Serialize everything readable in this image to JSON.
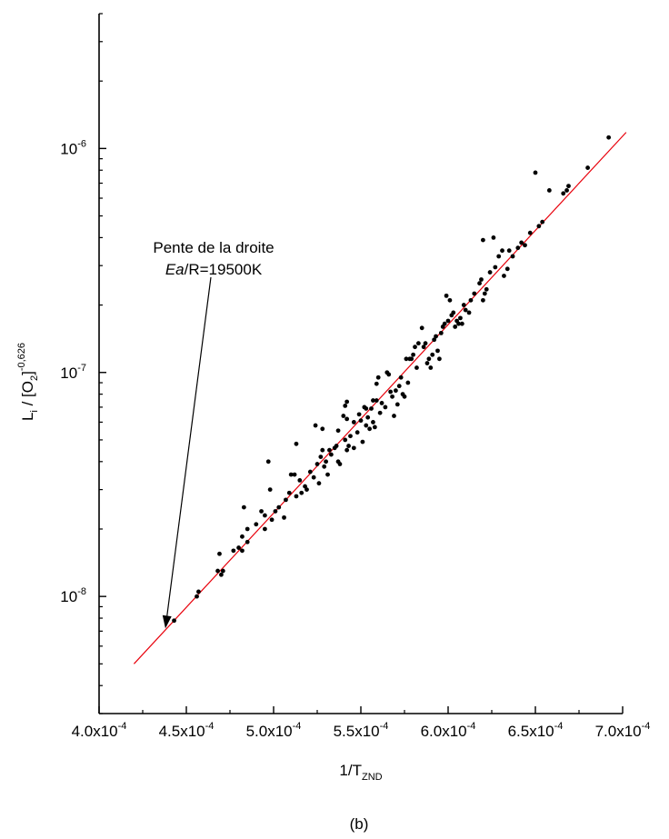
{
  "chart_data": {
    "type": "scatter",
    "caption": "(b)",
    "xlabel": {
      "main": "1/T",
      "sub": "ZND"
    },
    "ylabel": {
      "p1": "L",
      "s1": "i",
      "p2": " / [O",
      "s2": "2",
      "p3": "]",
      "sup": "-0,626"
    },
    "x_scale": "linear",
    "y_scale": "log",
    "xlim": [
      0.0004,
      0.0007
    ],
    "ylim": [
      3e-09,
      4e-06
    ],
    "x_ticks": [
      {
        "value": 0.0004,
        "mant": "4.0x10",
        "exp": "-4"
      },
      {
        "value": 0.00045,
        "mant": "4.5x10",
        "exp": "-4"
      },
      {
        "value": 0.0005,
        "mant": "5.0x10",
        "exp": "-4"
      },
      {
        "value": 0.00055,
        "mant": "5.5x10",
        "exp": "-4"
      },
      {
        "value": 0.0006,
        "mant": "6.0x10",
        "exp": "-4"
      },
      {
        "value": 0.00065,
        "mant": "6.5x10",
        "exp": "-4"
      },
      {
        "value": 0.0007,
        "mant": "7.0x10",
        "exp": "-4"
      }
    ],
    "y_ticks": [
      {
        "value": 1e-08,
        "base": "10",
        "exp": "-8"
      },
      {
        "value": 1e-07,
        "base": "10",
        "exp": "-7"
      },
      {
        "value": 1e-06,
        "base": "10",
        "exp": "-6"
      }
    ],
    "grid": false,
    "fit_line": {
      "color": "#e8000b",
      "x": [
        0.00042,
        0.000702
      ],
      "y": [
        5e-09,
        1.18e-06
      ]
    },
    "annotation": {
      "line1": "Pente de la droite",
      "line2_italic": "Ea",
      "line2_rest": "/R=19500K",
      "arrow_target": {
        "x": 0.000438,
        "y": 7.2e-09
      }
    },
    "series": [
      {
        "marker_color": "#000000",
        "points": [
          [
            0.000443,
            7.8e-09
          ],
          [
            0.000456,
            1e-08
          ],
          [
            0.000457,
            1.05e-08
          ],
          [
            0.000468,
            1.3e-08
          ],
          [
            0.000469,
            1.55e-08
          ],
          [
            0.00047,
            1.25e-08
          ],
          [
            0.000471,
            1.3e-08
          ],
          [
            0.000477,
            1.6e-08
          ],
          [
            0.00048,
            1.65e-08
          ],
          [
            0.000482,
            1.85e-08
          ],
          [
            0.000482,
            1.6e-08
          ],
          [
            0.000483,
            2.5e-08
          ],
          [
            0.000485,
            2e-08
          ],
          [
            0.000485,
            1.75e-08
          ],
          [
            0.00049,
            2.1e-08
          ],
          [
            0.000493,
            2.4e-08
          ],
          [
            0.000495,
            2.3e-08
          ],
          [
            0.000495,
            2e-08
          ],
          [
            0.000497,
            4e-08
          ],
          [
            0.000498,
            3e-08
          ],
          [
            0.000499,
            2.2e-08
          ],
          [
            0.000501,
            2.4e-08
          ],
          [
            0.000503,
            2.5e-08
          ],
          [
            0.000506,
            2.25e-08
          ],
          [
            0.000507,
            2.7e-08
          ],
          [
            0.000509,
            2.9e-08
          ],
          [
            0.00051,
            3.5e-08
          ],
          [
            0.000512,
            3.5e-08
          ],
          [
            0.000513,
            4.8e-08
          ],
          [
            0.000513,
            2.8e-08
          ],
          [
            0.000515,
            3.3e-08
          ],
          [
            0.000516,
            2.9e-08
          ],
          [
            0.000518,
            3.1e-08
          ],
          [
            0.000519,
            3e-08
          ],
          [
            0.000521,
            3.6e-08
          ],
          [
            0.000523,
            3.4e-08
          ],
          [
            0.000524,
            5.8e-08
          ],
          [
            0.000525,
            3.9e-08
          ],
          [
            0.000526,
            3.2e-08
          ],
          [
            0.000527,
            4.2e-08
          ],
          [
            0.000528,
            5.6e-08
          ],
          [
            0.000528,
            4.5e-08
          ],
          [
            0.000529,
            3.8e-08
          ],
          [
            0.00053,
            4e-08
          ],
          [
            0.000531,
            3.5e-08
          ],
          [
            0.000532,
            4.5e-08
          ],
          [
            0.000533,
            4.3e-08
          ],
          [
            0.000535,
            4.6e-08
          ],
          [
            0.000536,
            4.7e-08
          ],
          [
            0.000537,
            4e-08
          ],
          [
            0.000537,
            5.5e-08
          ],
          [
            0.000538,
            3.9e-08
          ],
          [
            0.00054,
            6.4e-08
          ],
          [
            0.000541,
            7.1e-08
          ],
          [
            0.000541,
            5e-08
          ],
          [
            0.000542,
            7.4e-08
          ],
          [
            0.000542,
            6.2e-08
          ],
          [
            0.000542,
            4.5e-08
          ],
          [
            0.000543,
            4.7e-08
          ],
          [
            0.000544,
            5.2e-08
          ],
          [
            0.000546,
            6e-08
          ],
          [
            0.000546,
            4.6e-08
          ],
          [
            0.000548,
            5.4e-08
          ],
          [
            0.000549,
            6.5e-08
          ],
          [
            0.00055,
            6.1e-08
          ],
          [
            0.000551,
            4.9e-08
          ],
          [
            0.000552,
            7e-08
          ],
          [
            0.000553,
            5.8e-08
          ],
          [
            0.000553,
            6.9e-08
          ],
          [
            0.000554,
            6.3e-08
          ],
          [
            0.000555,
            5.6e-08
          ],
          [
            0.000556,
            6.9e-08
          ],
          [
            0.000557,
            7.5e-08
          ],
          [
            0.000557,
            6e-08
          ],
          [
            0.000558,
            5.7e-08
          ],
          [
            0.000559,
            8.9e-08
          ],
          [
            0.000559,
            7.5e-08
          ],
          [
            0.00056,
            9.5e-08
          ],
          [
            0.000561,
            6.6e-08
          ],
          [
            0.000562,
            7.3e-08
          ],
          [
            0.000564,
            7e-08
          ],
          [
            0.000565,
            1e-07
          ],
          [
            0.000566,
            9.8e-08
          ],
          [
            0.000567,
            8.2e-08
          ],
          [
            0.000568,
            7.8e-08
          ],
          [
            0.000569,
            6.4e-08
          ],
          [
            0.00057,
            8.3e-08
          ],
          [
            0.000571,
            7.2e-08
          ],
          [
            0.000572,
            8.7e-08
          ],
          [
            0.000573,
            9.5e-08
          ],
          [
            0.000574,
            8e-08
          ],
          [
            0.000575,
            7.8e-08
          ],
          [
            0.000576,
            1.15e-07
          ],
          [
            0.000577,
            9e-08
          ],
          [
            0.000578,
            1.15e-07
          ],
          [
            0.000579,
            1.15e-07
          ],
          [
            0.00058,
            1.2e-07
          ],
          [
            0.000581,
            1.3e-07
          ],
          [
            0.000582,
            1.05e-07
          ],
          [
            0.000583,
            1.35e-07
          ],
          [
            0.000585,
            1.58e-07
          ],
          [
            0.000586,
            1.3e-07
          ],
          [
            0.000587,
            1.35e-07
          ],
          [
            0.000588,
            1.1e-07
          ],
          [
            0.000589,
            1.15e-07
          ],
          [
            0.00059,
            1.05e-07
          ],
          [
            0.000591,
            1.2e-07
          ],
          [
            0.000592,
            1.4e-07
          ],
          [
            0.000593,
            1.45e-07
          ],
          [
            0.000594,
            1.25e-07
          ],
          [
            0.000595,
            1.15e-07
          ],
          [
            0.000596,
            1.5e-07
          ],
          [
            0.000597,
            1.6e-07
          ],
          [
            0.000598,
            1.65e-07
          ],
          [
            0.000599,
            2.2e-07
          ],
          [
            0.0006,
            1.7e-07
          ],
          [
            0.000601,
            2.1e-07
          ],
          [
            0.000602,
            1.8e-07
          ],
          [
            0.000603,
            1.85e-07
          ],
          [
            0.000604,
            1.6e-07
          ],
          [
            0.000605,
            1.7e-07
          ],
          [
            0.000606,
            1.65e-07
          ],
          [
            0.000607,
            1.75e-07
          ],
          [
            0.000608,
            1.65e-07
          ],
          [
            0.000609,
            2e-07
          ],
          [
            0.00061,
            1.9e-07
          ],
          [
            0.000612,
            1.85e-07
          ],
          [
            0.000613,
            2.1e-07
          ],
          [
            0.000615,
            2.25e-07
          ],
          [
            0.000618,
            2.5e-07
          ],
          [
            0.000619,
            2.6e-07
          ],
          [
            0.00062,
            3.9e-07
          ],
          [
            0.00062,
            2.1e-07
          ],
          [
            0.000621,
            2.25e-07
          ],
          [
            0.000622,
            2.35e-07
          ],
          [
            0.000624,
            2.8e-07
          ],
          [
            0.000626,
            4e-07
          ],
          [
            0.000627,
            2.95e-07
          ],
          [
            0.000629,
            3.3e-07
          ],
          [
            0.000631,
            3.5e-07
          ],
          [
            0.000632,
            2.7e-07
          ],
          [
            0.000634,
            2.9e-07
          ],
          [
            0.000635,
            3.5e-07
          ],
          [
            0.000637,
            3.3e-07
          ],
          [
            0.00064,
            3.6e-07
          ],
          [
            0.000642,
            3.8e-07
          ],
          [
            0.000644,
            3.7e-07
          ],
          [
            0.000647,
            4.2e-07
          ],
          [
            0.00065,
            7.8e-07
          ],
          [
            0.000652,
            4.5e-07
          ],
          [
            0.000654,
            4.7e-07
          ],
          [
            0.000658,
            6.5e-07
          ],
          [
            0.000666,
            6.3e-07
          ],
          [
            0.000668,
            6.5e-07
          ],
          [
            0.000669,
            6.8e-07
          ],
          [
            0.00068,
            8.2e-07
          ],
          [
            0.000692,
            1.12e-06
          ]
        ]
      }
    ]
  }
}
